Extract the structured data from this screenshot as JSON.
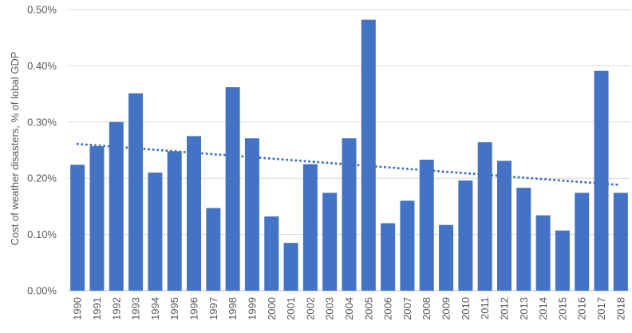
{
  "chart_data": {
    "type": "bar",
    "title": "",
    "xlabel": "",
    "ylabel": "Cost of weather disasters, % of lobal GDP",
    "ylim": [
      0,
      0.5
    ],
    "yticks": [
      "0.00%",
      "0.10%",
      "0.20%",
      "0.30%",
      "0.40%",
      "0.50%"
    ],
    "categories": [
      "1990",
      "1991",
      "1992",
      "1993",
      "1994",
      "1995",
      "1996",
      "1997",
      "1998",
      "1999",
      "2000",
      "2001",
      "2002",
      "2003",
      "2004",
      "2005",
      "2006",
      "2007",
      "2008",
      "2009",
      "2010",
      "2011",
      "2012",
      "2013",
      "2014",
      "2015",
      "2016",
      "2017",
      "2018"
    ],
    "values": [
      0.224,
      0.257,
      0.3,
      0.351,
      0.21,
      0.248,
      0.275,
      0.147,
      0.362,
      0.271,
      0.132,
      0.085,
      0.225,
      0.174,
      0.271,
      0.482,
      0.12,
      0.16,
      0.233,
      0.117,
      0.196,
      0.264,
      0.231,
      0.183,
      0.134,
      0.107,
      0.174,
      0.391,
      0.174
    ],
    "trendline": {
      "type": "linear",
      "start": 0.261,
      "end": 0.188,
      "style": "dotted"
    },
    "grid": true,
    "legend": "none",
    "colors": {
      "bar": "#4472C4",
      "trend": "#4472C4",
      "grid": "#d9d9d9",
      "axis": "#bfbfbf"
    }
  }
}
